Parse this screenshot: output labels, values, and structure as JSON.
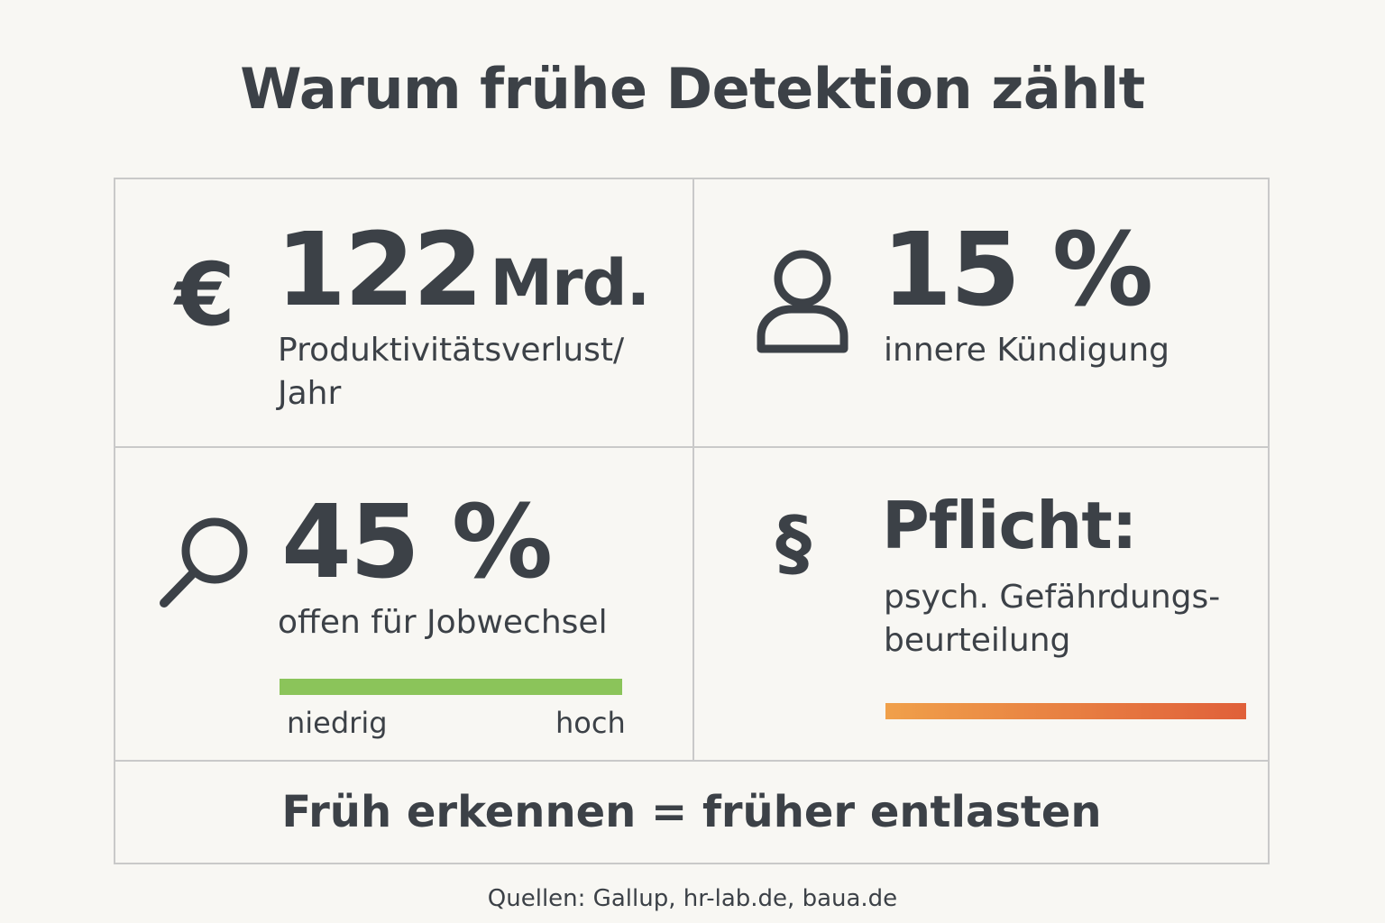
{
  "title": "Warum frühe Detektion zählt",
  "cards": {
    "cost": {
      "icon": "euro-icon",
      "icon_glyph": "€",
      "value": "122",
      "unit": "Mrd.",
      "label_line1": "Produktivitätsverlust/",
      "label_line2": "Jahr"
    },
    "resignation": {
      "icon": "person-icon",
      "value": "15 %",
      "label": "innere Kündigung"
    },
    "jobchange": {
      "icon": "magnifier-icon",
      "value": "45 %",
      "label": "offen für Jobwechsel",
      "scale_low": "niedrig",
      "scale_high": "hoch",
      "bar_color": "#8bc45a"
    },
    "duty": {
      "icon": "paragraph-icon",
      "icon_glyph": "§",
      "value": "Pflicht:",
      "label_line1": "psych. Gefährdungs-",
      "label_line2": "beurteilung",
      "bar_color_start": "#f0a04a",
      "bar_color_end": "#e0603a"
    }
  },
  "footer_statement": "Früh erkennen = früher entlasten",
  "sources": "Quellen: Gallup, hr-lab.de, baua.de"
}
